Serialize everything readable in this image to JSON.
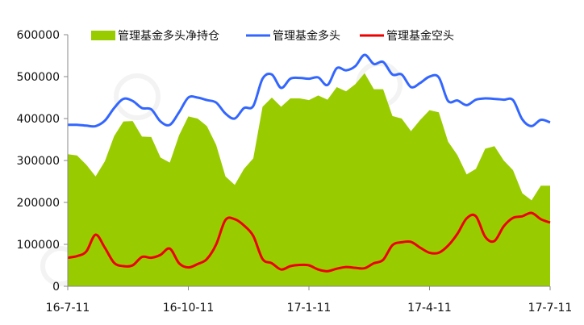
{
  "chart_data": {
    "type": "area+line",
    "xlabel": "",
    "ylabel": "",
    "ylim": [
      0,
      600000
    ],
    "y_ticks": [
      "600000",
      "500000",
      "400000",
      "300000",
      "200000",
      "100000",
      "0"
    ],
    "x_ticks": [
      "16-7-11",
      "16-10-11",
      "17-1-11",
      "17-4-11",
      "17-7-11"
    ],
    "grid": false,
    "legend_position": "top",
    "colors": {
      "net": "#99cc00",
      "long": "#3366ff",
      "short": "#ee0000"
    },
    "series": [
      {
        "name": "管理基金多头净持仓",
        "style": "area",
        "values": [
          315000,
          312000,
          290000,
          262000,
          298000,
          358000,
          393000,
          394000,
          357000,
          356000,
          307000,
          295000,
          360000,
          405000,
          400000,
          382000,
          337000,
          262000,
          242000,
          280000,
          305000,
          428000,
          450000,
          428000,
          448000,
          448000,
          444000,
          455000,
          445000,
          475000,
          465000,
          482000,
          508000,
          470000,
          470000,
          406000,
          400000,
          370000,
          397000,
          420000,
          415000,
          345000,
          313000,
          267000,
          280000,
          328000,
          334000,
          300000,
          277000,
          222000,
          205000,
          240000,
          240000
        ]
      },
      {
        "name": "管理基金多头",
        "style": "line",
        "values": [
          385000,
          385000,
          383000,
          382000,
          395000,
          425000,
          447000,
          442000,
          425000,
          422000,
          393000,
          385000,
          415000,
          450000,
          450000,
          444000,
          438000,
          412000,
          400000,
          425000,
          430000,
          495000,
          505000,
          473000,
          495000,
          497000,
          495000,
          498000,
          480000,
          520000,
          515000,
          525000,
          552000,
          530000,
          535000,
          505000,
          505000,
          475000,
          485000,
          500000,
          498000,
          442000,
          443000,
          432000,
          445000,
          448000,
          447000,
          445000,
          444000,
          398000,
          382000,
          397000,
          391000
        ]
      },
      {
        "name": "管理基金空头",
        "style": "line",
        "values": [
          68000,
          72000,
          83000,
          123000,
          92000,
          56000,
          48000,
          50000,
          70000,
          68000,
          75000,
          90000,
          55000,
          45000,
          53000,
          65000,
          100000,
          158000,
          160000,
          145000,
          120000,
          65000,
          55000,
          40000,
          48000,
          51000,
          50000,
          40000,
          36000,
          42000,
          46000,
          44000,
          43000,
          55000,
          63000,
          98000,
          105000,
          106000,
          92000,
          80000,
          80000,
          97000,
          125000,
          162000,
          167000,
          118000,
          108000,
          143000,
          163000,
          167000,
          175000,
          160000,
          152000
        ]
      }
    ]
  }
}
